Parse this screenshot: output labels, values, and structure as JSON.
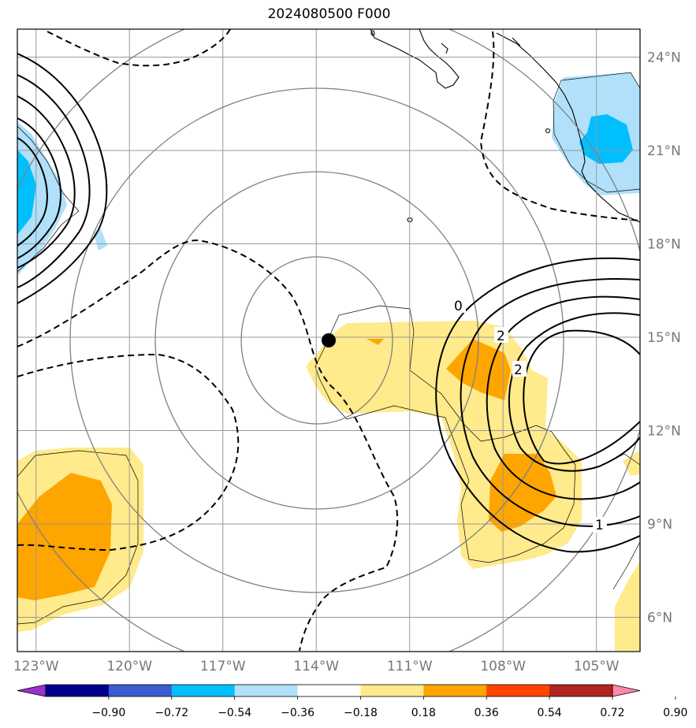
{
  "title": "2024080500 F000",
  "map": {
    "lon_labels": [
      "123°W",
      "120°W",
      "117°W",
      "114°W",
      "111°W",
      "108°W",
      "105°W"
    ],
    "lon_values": [
      -123,
      -120,
      -117,
      -114,
      -111,
      -108,
      -105
    ],
    "lat_labels": [
      "24°N",
      "21°N",
      "18°N",
      "15°N",
      "12°N",
      "9°N",
      "6°N"
    ],
    "lat_values": [
      24,
      21,
      18,
      15,
      12,
      9,
      6
    ],
    "lon_range": [
      -123.6,
      -103.6
    ],
    "lat_range": [
      4.9,
      24.9
    ],
    "storm_center": {
      "lon": -113.6,
      "lat": 14.9
    },
    "contour_labels": [
      "0",
      "2",
      "2",
      "1"
    ]
  },
  "colorbar": {
    "labels": [
      "−0.90",
      "−0.72",
      "−0.54",
      "−0.36",
      "−0.18",
      "0.18",
      "0.36",
      "0.54",
      "0.72",
      "0.90"
    ],
    "colors": [
      "#9932cc",
      "#00008b",
      "#3c5bd1",
      "#00bfff",
      "#b0e0fa",
      "#ffffff",
      "#ffea8c",
      "#ffa500",
      "#ff4500",
      "#b22222",
      "#ff88aa"
    ]
  },
  "colors": {
    "light_blue": "#b0e0fa",
    "blue": "#00bfff",
    "light_yellow": "#ffea8c",
    "orange": "#ffa500"
  }
}
